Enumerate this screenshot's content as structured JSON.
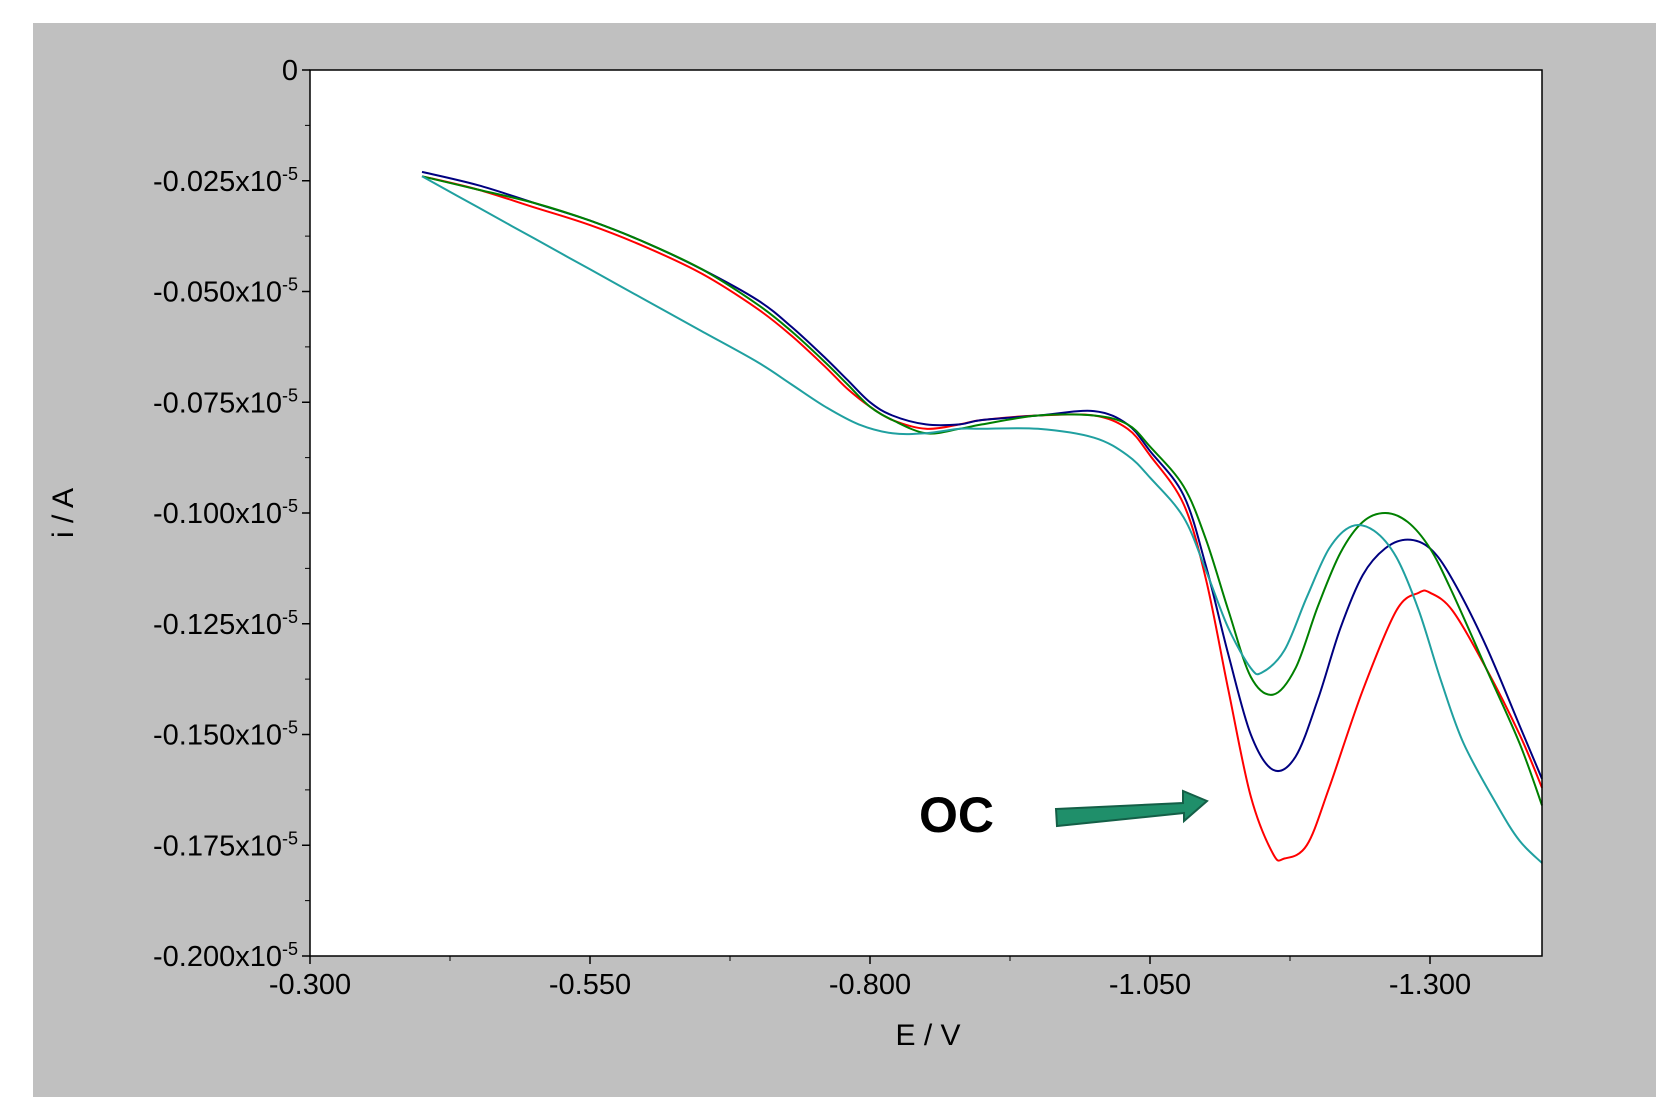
{
  "chart_data": {
    "type": "line",
    "xlabel": "E / V",
    "ylabel": "i / A",
    "xlim": [
      -0.3,
      -1.4
    ],
    "ylim": [
      0,
      -0.2
    ],
    "x_reversed": true,
    "y_reversed": true,
    "x_ticks": [
      -0.3,
      -0.55,
      -0.8,
      -1.05,
      -1.3
    ],
    "x_tick_labels": [
      "-0.300",
      "-0.550",
      "-0.800",
      "-1.050",
      "-1.300"
    ],
    "y_ticks": [
      0,
      -0.025,
      -0.05,
      -0.075,
      -0.1,
      -0.125,
      -0.15,
      -0.175,
      -0.2
    ],
    "y_tick_labels": [
      {
        "base": "0",
        "exp": ""
      },
      {
        "base": "-0.025x10",
        "exp": "-5"
      },
      {
        "base": "-0.050x10",
        "exp": "-5"
      },
      {
        "base": "-0.075x10",
        "exp": "-5"
      },
      {
        "base": "-0.100x10",
        "exp": "-5"
      },
      {
        "base": "-0.125x10",
        "exp": "-5"
      },
      {
        "base": "-0.150x10",
        "exp": "-5"
      },
      {
        "base": "-0.175x10",
        "exp": "-5"
      },
      {
        "base": "-0.200x10",
        "exp": "-5"
      }
    ],
    "y_unit_note": "values in units of 10^-5 A",
    "grid": false,
    "series": [
      {
        "color": "#ff0000",
        "x": [
          -0.4,
          -0.45,
          -0.5,
          -0.55,
          -0.6,
          -0.65,
          -0.7,
          -0.73,
          -0.76,
          -0.78,
          -0.8,
          -0.82,
          -0.85,
          -0.88,
          -0.9,
          -0.95,
          -1.0,
          -1.03,
          -1.05,
          -1.08,
          -1.1,
          -1.12,
          -1.14,
          -1.16,
          -1.17,
          -1.19,
          -1.21,
          -1.24,
          -1.27,
          -1.29,
          -1.3,
          -1.32,
          -1.35,
          -1.38,
          -1.4
        ],
        "values": [
          -0.024,
          -0.027,
          -0.031,
          -0.035,
          -0.04,
          -0.046,
          -0.054,
          -0.06,
          -0.067,
          -0.072,
          -0.076,
          -0.079,
          -0.081,
          -0.08,
          -0.079,
          -0.078,
          -0.078,
          -0.081,
          -0.087,
          -0.098,
          -0.115,
          -0.14,
          -0.164,
          -0.177,
          -0.178,
          -0.175,
          -0.162,
          -0.14,
          -0.122,
          -0.118,
          -0.118,
          -0.122,
          -0.135,
          -0.15,
          -0.162
        ]
      },
      {
        "color": "#000080",
        "x": [
          -0.4,
          -0.45,
          -0.5,
          -0.55,
          -0.6,
          -0.65,
          -0.7,
          -0.73,
          -0.76,
          -0.78,
          -0.8,
          -0.82,
          -0.85,
          -0.88,
          -0.9,
          -0.95,
          -1.0,
          -1.03,
          -1.05,
          -1.08,
          -1.1,
          -1.12,
          -1.14,
          -1.16,
          -1.18,
          -1.2,
          -1.22,
          -1.24,
          -1.26,
          -1.28,
          -1.3,
          -1.32,
          -1.35,
          -1.38,
          -1.4
        ],
        "values": [
          -0.023,
          -0.026,
          -0.03,
          -0.034,
          -0.039,
          -0.045,
          -0.052,
          -0.058,
          -0.065,
          -0.07,
          -0.075,
          -0.078,
          -0.08,
          -0.08,
          -0.079,
          -0.078,
          -0.077,
          -0.08,
          -0.086,
          -0.096,
          -0.112,
          -0.132,
          -0.15,
          -0.158,
          -0.155,
          -0.142,
          -0.126,
          -0.114,
          -0.108,
          -0.106,
          -0.108,
          -0.115,
          -0.13,
          -0.148,
          -0.16
        ]
      },
      {
        "color": "#008000",
        "x": [
          -0.4,
          -0.45,
          -0.5,
          -0.55,
          -0.6,
          -0.65,
          -0.7,
          -0.73,
          -0.76,
          -0.78,
          -0.8,
          -0.82,
          -0.85,
          -0.88,
          -0.9,
          -0.95,
          -1.0,
          -1.03,
          -1.05,
          -1.08,
          -1.1,
          -1.12,
          -1.14,
          -1.16,
          -1.18,
          -1.2,
          -1.22,
          -1.24,
          -1.26,
          -1.28,
          -1.3,
          -1.32,
          -1.35,
          -1.38,
          -1.4
        ],
        "values": [
          -0.024,
          -0.027,
          -0.03,
          -0.034,
          -0.039,
          -0.045,
          -0.053,
          -0.059,
          -0.066,
          -0.071,
          -0.076,
          -0.079,
          -0.082,
          -0.081,
          -0.08,
          -0.078,
          -0.078,
          -0.08,
          -0.085,
          -0.094,
          -0.106,
          -0.122,
          -0.137,
          -0.141,
          -0.135,
          -0.121,
          -0.109,
          -0.102,
          -0.1,
          -0.102,
          -0.108,
          -0.118,
          -0.135,
          -0.152,
          -0.166
        ]
      },
      {
        "color": "#20a0a0",
        "x": [
          -0.4,
          -0.45,
          -0.5,
          -0.55,
          -0.6,
          -0.65,
          -0.7,
          -0.73,
          -0.76,
          -0.79,
          -0.82,
          -0.85,
          -0.88,
          -0.9,
          -0.95,
          -1.0,
          -1.03,
          -1.05,
          -1.08,
          -1.1,
          -1.12,
          -1.14,
          -1.15,
          -1.17,
          -1.19,
          -1.21,
          -1.23,
          -1.25,
          -1.27,
          -1.29,
          -1.31,
          -1.33,
          -1.36,
          -1.38,
          -1.4
        ],
        "values": [
          -0.024,
          -0.031,
          -0.038,
          -0.045,
          -0.052,
          -0.059,
          -0.066,
          -0.071,
          -0.076,
          -0.08,
          -0.082,
          -0.082,
          -0.081,
          -0.081,
          -0.081,
          -0.083,
          -0.087,
          -0.092,
          -0.101,
          -0.113,
          -0.126,
          -0.135,
          -0.136,
          -0.131,
          -0.119,
          -0.108,
          -0.103,
          -0.104,
          -0.11,
          -0.122,
          -0.138,
          -0.152,
          -0.166,
          -0.174,
          -0.179
        ]
      }
    ],
    "annotations": [
      {
        "text": "OC",
        "x": -1.18,
        "y": -0.168
      }
    ]
  }
}
